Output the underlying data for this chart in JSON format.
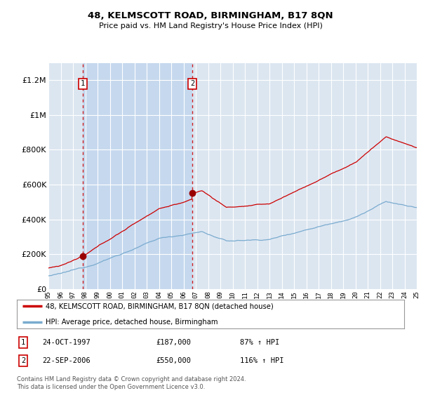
{
  "title": "48, KELMSCOTT ROAD, BIRMINGHAM, B17 8QN",
  "subtitle": "Price paid vs. HM Land Registry's House Price Index (HPI)",
  "background_color": "#ffffff",
  "plot_background": "#dce6f1",
  "shaded_region_color": "#c5d8ee",
  "grid_color": "#ffffff",
  "ylim": [
    0,
    1300000
  ],
  "yticks": [
    0,
    200000,
    400000,
    600000,
    800000,
    1000000,
    1200000
  ],
  "ytick_labels": [
    "£0",
    "£200K",
    "£400K",
    "£600K",
    "£800K",
    "£1M",
    "£1.2M"
  ],
  "year_start": 1995,
  "year_end": 2025,
  "sale1_year": 1997.8,
  "sale1_price": 187000,
  "sale2_year": 2006.72,
  "sale2_price": 550000,
  "legend_line1": "48, KELMSCOTT ROAD, BIRMINGHAM, B17 8QN (detached house)",
  "legend_line2": "HPI: Average price, detached house, Birmingham",
  "table_row1_num": "1",
  "table_row1_date": "24-OCT-1997",
  "table_row1_price": "£187,000",
  "table_row1_hpi": "87% ↑ HPI",
  "table_row2_num": "2",
  "table_row2_date": "22-SEP-2006",
  "table_row2_price": "£550,000",
  "table_row2_hpi": "116% ↑ HPI",
  "footer": "Contains HM Land Registry data © Crown copyright and database right 2024.\nThis data is licensed under the Open Government Licence v3.0.",
  "red_line_color": "#cc0000",
  "blue_line_color": "#7aabcf",
  "marker_color": "#990000",
  "dashed_color": "#cc0000",
  "box_color": "#cc0000"
}
